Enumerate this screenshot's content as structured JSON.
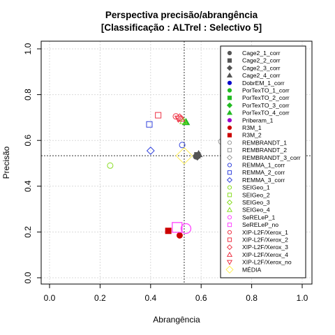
{
  "chart_data": {
    "type": "scatter",
    "title": "Perspectiva precisão/abrangência",
    "subtitle": "[Classificação : ALTrel : Selectivo 5]",
    "xlabel": "Abrangência",
    "ylabel": "Precisão",
    "xlim": [
      0,
      1
    ],
    "ylim": [
      0,
      1
    ],
    "x_ticks": [
      "0.0",
      "0.2",
      "0.4",
      "0.6",
      "0.8",
      "1.0"
    ],
    "y_ticks": [
      "0.0",
      "0.2",
      "0.4",
      "0.6",
      "0.8",
      "1.0"
    ],
    "grid": true,
    "reference_lines": {
      "x": 0.533,
      "y": 0.533
    },
    "legend_position": "right",
    "series": [
      {
        "name": "Cage2_1_corr",
        "marker": "circle",
        "filled": true,
        "color": "#555555",
        "x": 0.58,
        "y": 0.53
      },
      {
        "name": "Cage2_2_corr",
        "marker": "square",
        "filled": true,
        "color": "#555555",
        "x": 0.585,
        "y": 0.535
      },
      {
        "name": "Cage2_3_corr",
        "marker": "diamond",
        "filled": true,
        "color": "#555555",
        "x": 0.585,
        "y": 0.53
      },
      {
        "name": "Cage2_4_corr",
        "marker": "triangle",
        "filled": true,
        "color": "#555555",
        "x": 0.59,
        "y": 0.54
      },
      {
        "name": "DobrEM_1_corr",
        "marker": "circle",
        "filled": true,
        "color": "#0000cc",
        "x": null,
        "y": null
      },
      {
        "name": "PorTexTO_1_corr",
        "marker": "circle",
        "filled": true,
        "color": "#22bb22",
        "x": null,
        "y": null
      },
      {
        "name": "PorTexTO_2_corr",
        "marker": "square",
        "filled": true,
        "color": "#22bb22",
        "x": null,
        "y": null
      },
      {
        "name": "PorTexTO_3_corr",
        "marker": "diamond",
        "filled": true,
        "color": "#22bb22",
        "x": null,
        "y": null
      },
      {
        "name": "PorTexTO_4_corr",
        "marker": "triangle",
        "filled": true,
        "color": "#22bb22",
        "x": 0.54,
        "y": 0.68
      },
      {
        "name": "Priberam_1",
        "marker": "circle",
        "filled": true,
        "color": "#9900cc",
        "x": null,
        "y": null
      },
      {
        "name": "R3M_1",
        "marker": "circle",
        "filled": true,
        "color": "#cc0000",
        "x": 0.515,
        "y": 0.185
      },
      {
        "name": "R3M_2",
        "marker": "square",
        "filled": true,
        "color": "#cc0000",
        "x": 0.47,
        "y": 0.205
      },
      {
        "name": "REMBRANDT_1",
        "marker": "circle",
        "filled": false,
        "color": "#999999",
        "x": 0.68,
        "y": 0.595
      },
      {
        "name": "REMBRANDT_2",
        "marker": "square",
        "filled": false,
        "color": "#999999",
        "x": null,
        "y": null
      },
      {
        "name": "REMBRANDT_3_corr",
        "marker": "diamond",
        "filled": false,
        "color": "#999999",
        "x": null,
        "y": null
      },
      {
        "name": "REMMA_1_corr",
        "marker": "circle",
        "filled": false,
        "color": "#3344dd",
        "x": 0.525,
        "y": 0.58
      },
      {
        "name": "REMMA_2_corr",
        "marker": "square",
        "filled": false,
        "color": "#3344dd",
        "x": 0.395,
        "y": 0.67
      },
      {
        "name": "REMMA_3_corr",
        "marker": "diamond",
        "filled": false,
        "color": "#3344dd",
        "x": 0.4,
        "y": 0.555
      },
      {
        "name": "SEIGeo_1",
        "marker": "circle",
        "filled": false,
        "color": "#88dd22",
        "x": 0.24,
        "y": 0.49
      },
      {
        "name": "SEIGeo_2",
        "marker": "square",
        "filled": false,
        "color": "#88dd22",
        "x": null,
        "y": null
      },
      {
        "name": "SEIGeo_3",
        "marker": "diamond",
        "filled": false,
        "color": "#88dd22",
        "x": null,
        "y": null
      },
      {
        "name": "SEIGeo_4",
        "marker": "triangle",
        "filled": false,
        "color": "#88dd22",
        "x": 0.53,
        "y": 0.685
      },
      {
        "name": "SeRELeP_1",
        "marker": "circle",
        "filled": false,
        "color": "#ff44ff",
        "x": 0.54,
        "y": 0.215
      },
      {
        "name": "SeRELeP_no",
        "marker": "square",
        "filled": false,
        "color": "#ff44ff",
        "x": 0.505,
        "y": 0.22
      },
      {
        "name": "XIP-L2F/Xerox_1",
        "marker": "circle",
        "filled": false,
        "color": "#ee3344",
        "x": 0.5,
        "y": 0.705
      },
      {
        "name": "XIP-L2F/Xerox_2",
        "marker": "square",
        "filled": false,
        "color": "#ee3344",
        "x": 0.43,
        "y": 0.71
      },
      {
        "name": "XIP-L2F/Xerox_3",
        "marker": "diamond",
        "filled": false,
        "color": "#ee3344",
        "x": 0.515,
        "y": 0.7
      },
      {
        "name": "XIP-L2F/Xerox_4",
        "marker": "triangle",
        "filled": false,
        "color": "#ee3344",
        "x": 0.52,
        "y": 0.695
      },
      {
        "name": "XIP-L2F/Xerox_no",
        "marker": "triangle-down",
        "filled": false,
        "color": "#ee3344",
        "x": 0.51,
        "y": 0.695
      },
      {
        "name": "MÉDIA",
        "marker": "diamond",
        "filled": false,
        "color": "#ffee55",
        "x": 0.533,
        "y": 0.533
      }
    ]
  }
}
